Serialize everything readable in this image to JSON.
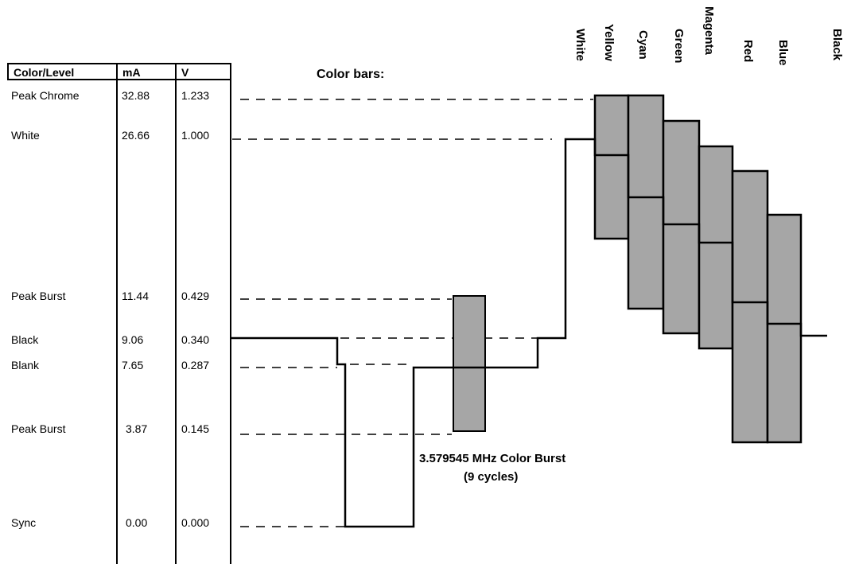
{
  "table": {
    "headers": [
      "Color/Level",
      "mA",
      "V"
    ],
    "rows": [
      {
        "label": "Peak Chrome",
        "ma": "32.88",
        "v": "1.233"
      },
      {
        "label": "White",
        "ma": "26.66",
        "v": "1.000"
      },
      {
        "label": "Peak Burst",
        "ma": "11.44",
        "v": "0.429"
      },
      {
        "label": "Black",
        "ma": "9.06",
        "v": "0.340"
      },
      {
        "label": "Blank",
        "ma": "7.65",
        "v": "0.287"
      },
      {
        "label": "Peak Burst",
        "ma": "3.87",
        "v": "0.145"
      },
      {
        "label": "Sync",
        "ma": "0.00",
        "v": "0.000"
      }
    ]
  },
  "diagram": {
    "color_bars_title": "Color bars:",
    "burst_caption_line1": "3.579545 MHz Color Burst",
    "burst_caption_line2": "(9 cycles)",
    "bar_names": [
      "White",
      "Yellow",
      "Cyan",
      "Green",
      "Magenta",
      "Red",
      "Blue",
      "Black"
    ],
    "bar_fill": "#a6a6a6"
  }
}
